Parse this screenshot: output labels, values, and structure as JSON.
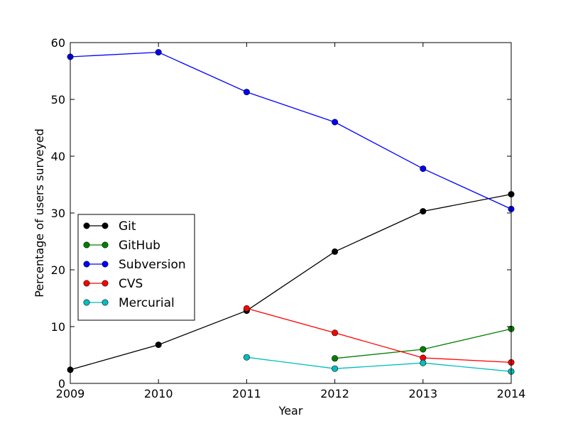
{
  "chart_data": {
    "type": "line",
    "xlabel": "Year",
    "ylabel": "Percentage of users surveyed",
    "xlim": [
      2009,
      2014
    ],
    "ylim": [
      0,
      60
    ],
    "x_ticks": [
      "2009",
      "2010",
      "2011",
      "2012",
      "2013",
      "2014"
    ],
    "y_ticks": [
      "0",
      "10",
      "20",
      "30",
      "40",
      "50",
      "60"
    ],
    "grid": false,
    "legend_position": "center-left",
    "series": [
      {
        "name": "Git",
        "color": "#000000",
        "points": [
          {
            "x": 2009,
            "y": 2.4
          },
          {
            "x": 2010,
            "y": 6.8
          },
          {
            "x": 2011,
            "y": 12.8
          },
          {
            "x": 2012,
            "y": 23.2
          },
          {
            "x": 2013,
            "y": 30.3
          },
          {
            "x": 2014,
            "y": 33.3
          }
        ]
      },
      {
        "name": "GitHub",
        "color": "#008000",
        "points": [
          {
            "x": 2012,
            "y": 4.4
          },
          {
            "x": 2013,
            "y": 6.0
          },
          {
            "x": 2014,
            "y": 9.6
          }
        ]
      },
      {
        "name": "Subversion",
        "color": "#0000ff",
        "points": [
          {
            "x": 2009,
            "y": 57.5
          },
          {
            "x": 2010,
            "y": 58.3
          },
          {
            "x": 2011,
            "y": 51.3
          },
          {
            "x": 2012,
            "y": 46.0
          },
          {
            "x": 2013,
            "y": 37.8
          },
          {
            "x": 2014,
            "y": 30.7
          }
        ]
      },
      {
        "name": "CVS",
        "color": "#ff0000",
        "points": [
          {
            "x": 2011,
            "y": 13.2
          },
          {
            "x": 2012,
            "y": 8.9
          },
          {
            "x": 2013,
            "y": 4.5
          },
          {
            "x": 2014,
            "y": 3.7
          }
        ]
      },
      {
        "name": "Mercurial",
        "color": "#00bfbf",
        "points": [
          {
            "x": 2011,
            "y": 4.6
          },
          {
            "x": 2012,
            "y": 2.6
          },
          {
            "x": 2013,
            "y": 3.6
          },
          {
            "x": 2014,
            "y": 2.1
          }
        ]
      }
    ]
  }
}
